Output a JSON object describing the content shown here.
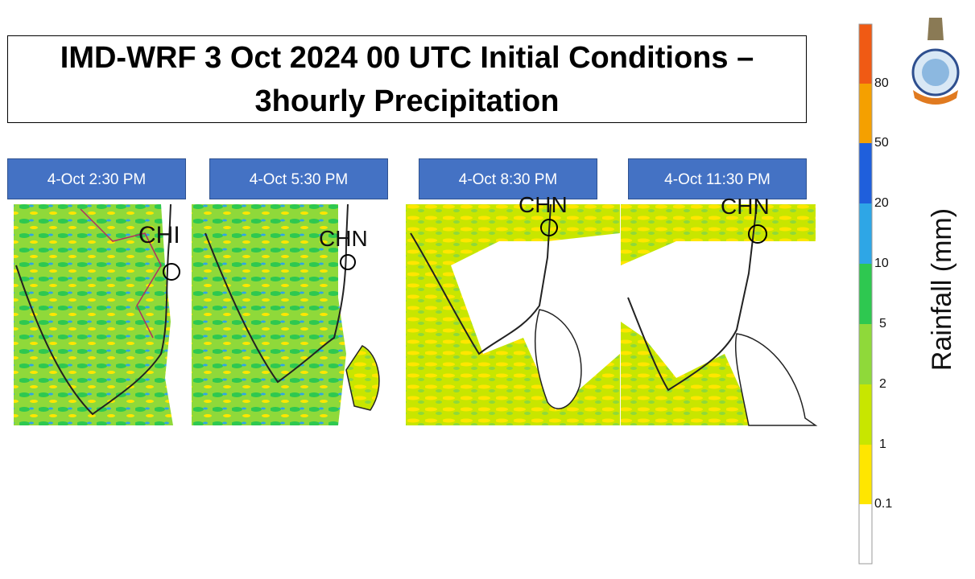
{
  "title_lines": [
    "IMD-WRF 3 Oct 2024 00 UTC Initial Conditions –",
    "3hourly Precipitation"
  ],
  "panels": [
    {
      "label": "4-Oct 2:30 PM",
      "station": "CHI"
    },
    {
      "label": "4-Oct 5:30 PM",
      "station": "CHN"
    },
    {
      "label": "4-Oct 8:30 PM",
      "station": "CHN"
    },
    {
      "label": "4-Oct 11:30 PM",
      "station": "CHN"
    }
  ],
  "colorbar": {
    "title": "Rainfall (mm)",
    "labels": [
      "0.1",
      "1",
      "2",
      "5",
      "10",
      "20",
      "50",
      "80"
    ]
  }
}
